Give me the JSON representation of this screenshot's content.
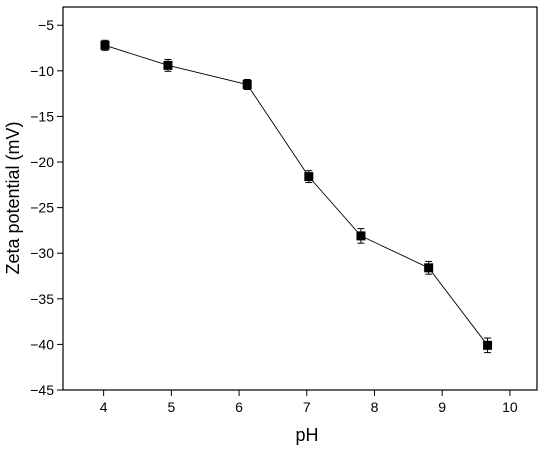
{
  "chart_data": {
    "type": "line",
    "title": "",
    "xlabel": "pH",
    "ylabel": "Zeta potential (mV)",
    "xlim": [
      3.4,
      10.4
    ],
    "ylim": [
      -45,
      -3
    ],
    "x_ticks": [
      4,
      5,
      6,
      7,
      8,
      9,
      10
    ],
    "y_ticks": [
      -5,
      -10,
      -15,
      -20,
      -25,
      -30,
      -35,
      -40,
      -45
    ],
    "x_tick_labels": [
      "4",
      "5",
      "6",
      "7",
      "8",
      "9",
      "10"
    ],
    "y_tick_labels": [
      "−5",
      "−10",
      "−15",
      "−20",
      "−25",
      "−30",
      "−35",
      "−40",
      "−45"
    ],
    "grid": false,
    "legend": false,
    "marker": "square",
    "color": "#000000",
    "series": [
      {
        "x": [
          4.02,
          4.95,
          6.12,
          7.03,
          7.8,
          8.8,
          9.67
        ],
        "y": [
          -7.2,
          -9.4,
          -11.5,
          -21.6,
          -28.1,
          -31.6,
          -40.1
        ],
        "error": [
          0.55,
          0.65,
          0.55,
          0.65,
          0.8,
          0.7,
          0.8
        ]
      }
    ]
  }
}
